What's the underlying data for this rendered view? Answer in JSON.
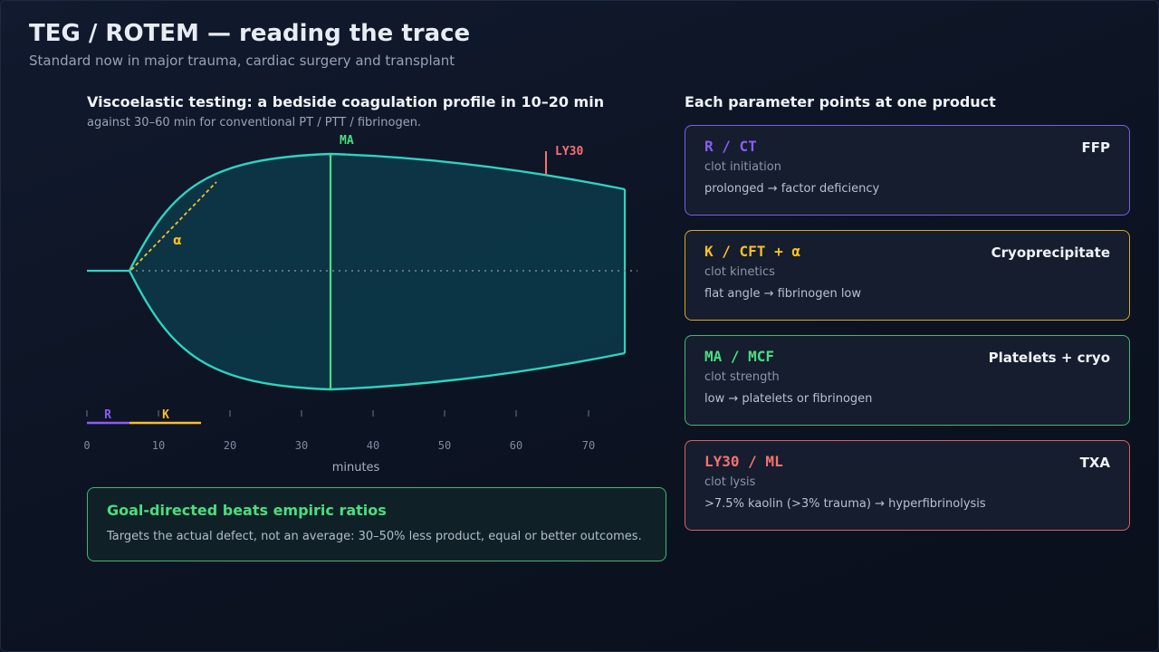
{
  "header": {
    "title": "TEG / ROTEM — reading the trace",
    "subtitle": "Standard now in major trauma, cardiac surgery and transplant"
  },
  "left": {
    "heading": "Viscoelastic testing: a bedside coagulation profile in 10–20 min",
    "subheading": "against 30–60 min for conventional PT / PTT / fibrinogen."
  },
  "trace": {
    "ma_label": "MA",
    "ly30_label": "LY30",
    "alpha_label": "α",
    "r_label": "R",
    "k_label": "K",
    "x_axis_label": "minutes",
    "x_ticks": [
      "0",
      "10",
      "20",
      "30",
      "40",
      "50",
      "60",
      "70"
    ],
    "r_interval_min": [
      0,
      6
    ],
    "k_interval_min": [
      6,
      16
    ],
    "ma_time_min": 34,
    "ly30_time_min": 64,
    "colors": {
      "trace": "#2dd4bf",
      "ma": "#4ade80",
      "ly30": "#f87171",
      "alpha": "#fbbf24",
      "r": "#8b5cf6",
      "k": "#fbbf24"
    }
  },
  "goal": {
    "title": "Goal-directed beats empiric ratios",
    "text": "Targets the actual defect, not an average: 30–50% less product, equal or better outcomes."
  },
  "right": {
    "heading": "Each parameter points at one product",
    "cards": [
      {
        "code": "R / CT",
        "product": "FFP",
        "role": "clot initiation",
        "desc": "prolonged → factor deficiency",
        "color": "#8b5cf6"
      },
      {
        "code": "K / CFT + α",
        "product": "Cryoprecipitate",
        "role": "clot kinetics",
        "desc": "flat angle → fibrinogen low",
        "color": "#fbbf24"
      },
      {
        "code": "MA / MCF",
        "product": "Platelets + cryo",
        "role": "clot strength",
        "desc": "low → platelets or fibrinogen",
        "color": "#4ade80"
      },
      {
        "code": "LY30 / ML",
        "product": "TXA",
        "role": "clot lysis",
        "desc": ">7.5% kaolin (>3% trauma) → hyperfibrinolysis",
        "color": "#f87171"
      }
    ]
  }
}
